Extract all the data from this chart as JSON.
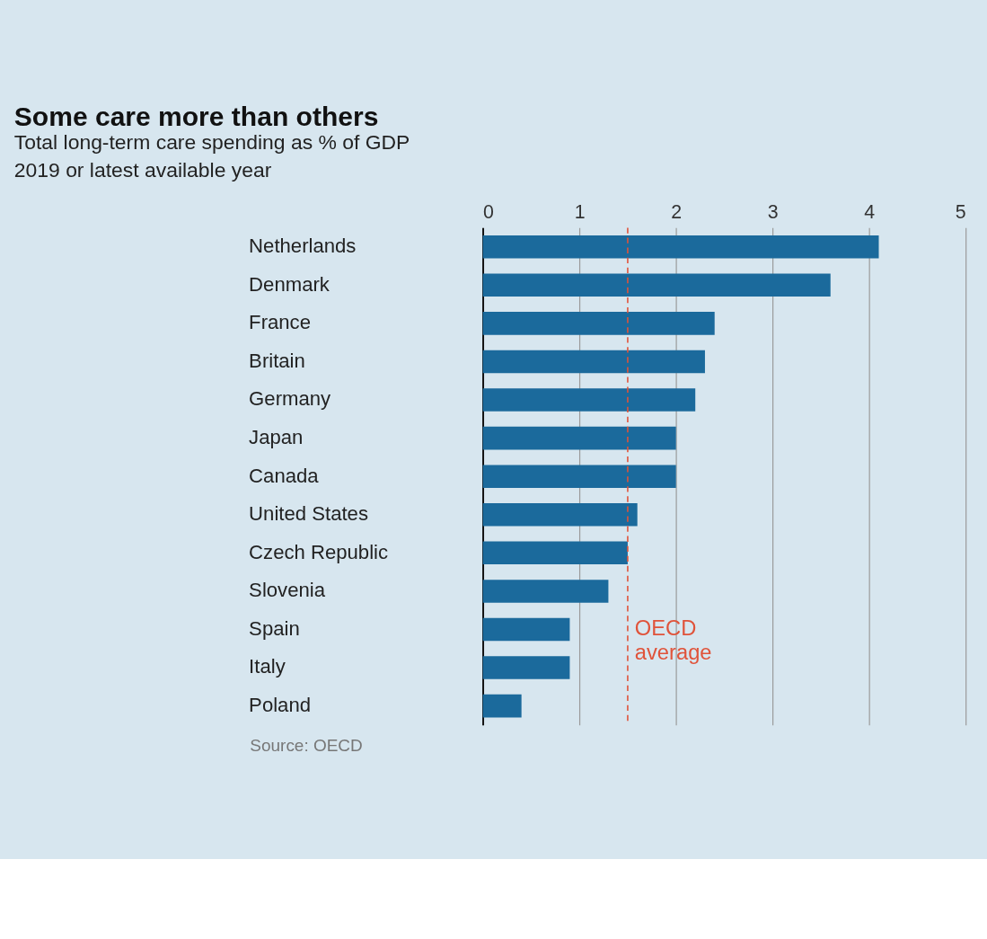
{
  "chart_data": {
    "type": "bar",
    "orientation": "horizontal",
    "title": "Some care more than others",
    "subtitle": "Total long-term care spending as % of GDP",
    "categories": [
      "Netherlands",
      "Denmark",
      "France",
      "Britain",
      "Germany",
      "Japan",
      "Canada",
      "United States",
      "Czech Republic",
      "Slovenia",
      "Spain",
      "Italy",
      "Poland"
    ],
    "values": [
      4.1,
      3.6,
      2.4,
      2.3,
      2.2,
      2.0,
      2.0,
      1.6,
      1.5,
      1.3,
      0.9,
      0.9,
      0.4
    ],
    "color": "#1b6a9c",
    "xlim": [
      0,
      5
    ],
    "xticks": [
      0,
      1,
      2,
      3,
      4,
      5
    ],
    "grid": "x",
    "ref_lines": [
      {
        "axis": "x",
        "value": 1.5,
        "label": "OECD average",
        "color": "#e0533a",
        "line_style": "dashed"
      }
    ],
    "annotations": [
      "2019 or latest available year",
      "Source: OECD"
    ]
  }
}
